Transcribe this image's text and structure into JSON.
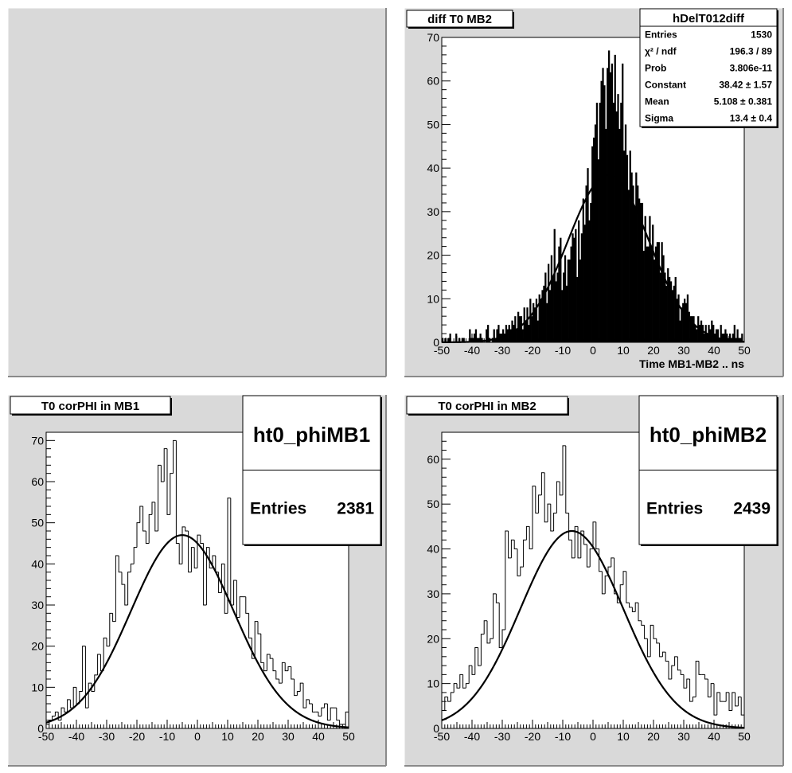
{
  "page": {
    "background": "#ffffff",
    "pad_fill": "#d9d9d9"
  },
  "pads": [
    {
      "id": "empty"
    },
    {
      "id": "diff",
      "title": "diff T0 MB2",
      "stats": {
        "name": "hDelT012diff",
        "rows": [
          {
            "label": "Entries",
            "value": "1530"
          },
          {
            "label": "χ² / ndf",
            "value": "196.3 / 89"
          },
          {
            "label": "Prob",
            "value": "3.806e-11"
          },
          {
            "label": "Constant",
            "value": "38.42 ± 1.57"
          },
          {
            "label": "Mean",
            "value": "5.108 ± 0.381"
          },
          {
            "label": "Sigma",
            "value": "13.4 ± 0.4"
          }
        ]
      }
    },
    {
      "id": "mb1",
      "title": "T0 corPHI in MB1",
      "stats": {
        "name": "ht0_phiMB1",
        "rows": [
          {
            "label": "Entries",
            "value": "2381"
          }
        ]
      }
    },
    {
      "id": "mb2",
      "title": "T0 corPHI in MB2",
      "stats": {
        "name": "ht0_phiMB2",
        "rows": [
          {
            "label": "Entries",
            "value": "2439"
          }
        ]
      }
    }
  ],
  "chart_data": [
    {
      "type": "bar",
      "style": "filled-histogram",
      "title": "diff T0 MB2",
      "xlabel": "Time MB1-MB2  ..  ns",
      "ylabel": "",
      "xlim": [
        -50,
        50
      ],
      "ylim": [
        0,
        70
      ],
      "xticks": [
        -50,
        -40,
        -30,
        -20,
        -10,
        0,
        10,
        20,
        30,
        40,
        50
      ],
      "yticks": [
        0,
        10,
        20,
        30,
        40,
        50,
        60,
        70
      ],
      "bin_width": 0.5,
      "fit": {
        "type": "gaus",
        "constant": 38.42,
        "mean": 5.108,
        "sigma": 13.4
      },
      "x": [
        -50,
        -49.5,
        -49,
        -48.5,
        -48,
        -47.5,
        -47,
        -46.5,
        -46,
        -45.5,
        -45,
        -44.5,
        -44,
        -43.5,
        -43,
        -42.5,
        -42,
        -41.5,
        -41,
        -40.5,
        -40,
        -39.5,
        -39,
        -38.5,
        -38,
        -37.5,
        -37,
        -36.5,
        -36,
        -35.5,
        -35,
        -34.5,
        -34,
        -33.5,
        -33,
        -32.5,
        -32,
        -31.5,
        -31,
        -30.5,
        -30,
        -29.5,
        -29,
        -28.5,
        -28,
        -27.5,
        -27,
        -26.5,
        -26,
        -25.5,
        -25,
        -24.5,
        -24,
        -23.5,
        -23,
        -22.5,
        -22,
        -21.5,
        -21,
        -20.5,
        -20,
        -19.5,
        -19,
        -18.5,
        -18,
        -17.5,
        -17,
        -16.5,
        -16,
        -15.5,
        -15,
        -14.5,
        -14,
        -13.5,
        -13,
        -12.5,
        -12,
        -11.5,
        -11,
        -10.5,
        -10,
        -9.5,
        -9,
        -8.5,
        -8,
        -7.5,
        -7,
        -6.5,
        -6,
        -5.5,
        -5,
        -4.5,
        -4,
        -3.5,
        -3,
        -2.5,
        -2,
        -1.5,
        -1,
        -0.5,
        0,
        0.5,
        1,
        1.5,
        2,
        2.5,
        3,
        3.5,
        4,
        4.5,
        5,
        5.5,
        6,
        6.5,
        7,
        7.5,
        8,
        8.5,
        9,
        9.5,
        10,
        10.5,
        11,
        11.5,
        12,
        12.5,
        13,
        13.5,
        14,
        14.5,
        15,
        15.5,
        16,
        16.5,
        17,
        17.5,
        18,
        18.5,
        19,
        19.5,
        20,
        20.5,
        21,
        21.5,
        22,
        22.5,
        23,
        23.5,
        24,
        24.5,
        25,
        25.5,
        26,
        26.5,
        27,
        27.5,
        28,
        28.5,
        29,
        29.5,
        30,
        30.5,
        31,
        31.5,
        32,
        32.5,
        33,
        33.5,
        34,
        34.5,
        35,
        35.5,
        36,
        36.5,
        37,
        37.5,
        38,
        38.5,
        39,
        39.5,
        40,
        40.5,
        41,
        41.5,
        42,
        42.5,
        43,
        43.5,
        44,
        44.5,
        45,
        45.5,
        46,
        46.5,
        47,
        47.5,
        48,
        48.5,
        49,
        49.5
      ],
      "values": [
        1,
        0,
        1,
        0,
        1,
        2,
        0,
        0,
        0,
        2,
        0,
        1,
        0,
        1,
        1,
        0,
        0,
        0,
        3,
        1,
        1,
        2,
        3,
        1,
        1,
        2,
        1,
        0,
        0,
        3,
        4,
        1,
        0,
        1,
        3,
        1,
        3,
        4,
        2,
        2,
        3,
        2,
        4,
        3,
        4,
        3,
        5,
        4,
        6,
        3,
        7,
        6,
        6,
        3,
        8,
        5,
        8,
        4,
        10,
        6,
        9,
        8,
        10,
        5,
        11,
        10,
        12,
        13,
        16,
        9,
        18,
        12,
        20,
        15,
        26,
        14,
        16,
        22,
        24,
        12,
        16,
        20,
        13,
        19,
        19,
        22,
        25,
        24,
        26,
        15,
        28,
        19,
        25,
        33,
        27,
        36,
        40,
        28,
        32,
        45,
        47,
        50,
        55,
        42,
        55,
        60,
        63,
        59,
        49,
        63,
        67,
        62,
        64,
        55,
        66,
        53,
        57,
        49,
        55,
        64,
        44,
        50,
        43,
        35,
        44,
        39,
        36,
        31,
        39,
        36,
        33,
        32,
        32,
        21,
        29,
        22,
        22,
        29,
        22,
        27,
        19,
        22,
        23,
        23,
        16,
        23,
        20,
        16,
        13,
        17,
        15,
        14,
        12,
        13,
        15,
        10,
        11,
        5,
        8,
        9,
        10,
        9,
        11,
        7,
        6,
        6,
        6,
        4,
        3,
        6,
        4,
        5,
        4,
        2,
        4,
        2,
        4,
        3,
        5,
        4,
        2,
        3,
        3,
        1,
        4,
        2,
        2,
        3,
        2,
        1,
        2,
        1,
        2,
        4,
        1,
        3,
        1,
        1,
        2,
        0
      ]
    },
    {
      "type": "bar",
      "style": "outline-histogram",
      "title": "T0 corPHI in MB1",
      "xlabel": "",
      "ylabel": "",
      "xlim": [
        -50,
        50
      ],
      "ylim": [
        0,
        72
      ],
      "xticks": [
        -50,
        -40,
        -30,
        -20,
        -10,
        0,
        10,
        20,
        30,
        40,
        50
      ],
      "yticks": [
        0,
        10,
        20,
        30,
        40,
        50,
        60,
        70
      ],
      "bin_width": 1,
      "fit": {
        "type": "gaus",
        "constant": 47,
        "mean": -5,
        "sigma": 17
      },
      "x": [
        -50,
        -49,
        -48,
        -47,
        -46,
        -45,
        -44,
        -43,
        -42,
        -41,
        -40,
        -39,
        -38,
        -37,
        -36,
        -35,
        -34,
        -33,
        -32,
        -31,
        -30,
        -29,
        -28,
        -27,
        -26,
        -25,
        -24,
        -23,
        -22,
        -21,
        -20,
        -19,
        -18,
        -17,
        -16,
        -15,
        -14,
        -13,
        -12,
        -11,
        -10,
        -9,
        -8,
        -7,
        -6,
        -5,
        -4,
        -3,
        -2,
        -1,
        0,
        1,
        2,
        3,
        4,
        5,
        6,
        7,
        8,
        9,
        10,
        11,
        12,
        13,
        14,
        15,
        16,
        17,
        18,
        19,
        20,
        21,
        22,
        23,
        24,
        25,
        26,
        27,
        28,
        29,
        30,
        31,
        32,
        33,
        34,
        35,
        36,
        37,
        38,
        39,
        40,
        41,
        42,
        43,
        44,
        45,
        46,
        47,
        48,
        49
      ],
      "values": [
        1,
        2,
        3,
        4,
        2,
        5,
        4,
        7,
        5,
        10,
        6,
        9,
        20,
        5,
        11,
        9,
        13,
        18,
        14,
        22,
        20,
        28,
        26,
        42,
        38,
        35,
        30,
        38,
        40,
        44,
        50,
        54,
        48,
        45,
        52,
        55,
        48,
        64,
        60,
        68,
        52,
        62,
        70,
        45,
        40,
        49,
        48,
        38,
        44,
        39,
        47,
        45,
        30,
        44,
        39,
        42,
        38,
        33,
        40,
        28,
        56,
        30,
        36,
        27,
        32,
        32,
        28,
        22,
        17,
        26,
        23,
        16,
        14,
        18,
        17,
        14,
        12,
        11,
        16,
        14,
        15,
        12,
        8,
        9,
        11,
        5,
        7,
        6,
        4,
        4,
        3,
        5,
        6,
        2,
        5,
        5,
        2,
        1,
        1,
        4
      ]
    },
    {
      "type": "bar",
      "style": "outline-histogram",
      "title": "T0 corPHI in MB2",
      "xlabel": "",
      "ylabel": "",
      "xlim": [
        -50,
        50
      ],
      "ylim": [
        0,
        66
      ],
      "xticks": [
        -50,
        -40,
        -30,
        -20,
        -10,
        0,
        10,
        20,
        30,
        40,
        50
      ],
      "yticks": [
        0,
        10,
        20,
        30,
        40,
        50,
        60
      ],
      "bin_width": 1,
      "fit": {
        "type": "gaus",
        "constant": 44,
        "mean": -7,
        "sigma": 17
      },
      "x": [
        -50,
        -49,
        -48,
        -47,
        -46,
        -45,
        -44,
        -43,
        -42,
        -41,
        -40,
        -39,
        -38,
        -37,
        -36,
        -35,
        -34,
        -33,
        -32,
        -31,
        -30,
        -29,
        -28,
        -27,
        -26,
        -25,
        -24,
        -23,
        -22,
        -21,
        -20,
        -19,
        -18,
        -17,
        -16,
        -15,
        -14,
        -13,
        -12,
        -11,
        -10,
        -9,
        -8,
        -7,
        -6,
        -5,
        -4,
        -3,
        -2,
        -1,
        0,
        1,
        2,
        3,
        4,
        5,
        6,
        7,
        8,
        9,
        10,
        11,
        12,
        13,
        14,
        15,
        16,
        17,
        18,
        19,
        20,
        21,
        22,
        23,
        24,
        25,
        26,
        27,
        28,
        29,
        30,
        31,
        32,
        33,
        34,
        35,
        36,
        37,
        38,
        39,
        40,
        41,
        42,
        43,
        44,
        45,
        46,
        47,
        48,
        49
      ],
      "values": [
        4,
        7,
        6,
        8,
        10,
        9,
        12,
        9,
        10,
        14,
        12,
        18,
        14,
        21,
        24,
        19,
        20,
        30,
        28,
        18,
        22,
        44,
        38,
        42,
        40,
        34,
        36,
        42,
        45,
        40,
        54,
        48,
        52,
        57,
        46,
        50,
        44,
        48,
        55,
        52,
        63,
        48,
        42,
        38,
        45,
        38,
        44,
        41,
        36,
        40,
        46,
        40,
        35,
        30,
        34,
        36,
        38,
        30,
        28,
        32,
        35,
        28,
        27,
        26,
        28,
        24,
        23,
        20,
        16,
        23,
        20,
        19,
        16,
        17,
        15,
        11,
        14,
        16,
        13,
        12,
        9,
        11,
        6,
        7,
        15,
        12,
        12,
        11,
        7,
        10,
        3,
        8,
        6,
        6,
        8,
        4,
        8,
        5,
        7,
        3
      ]
    }
  ]
}
